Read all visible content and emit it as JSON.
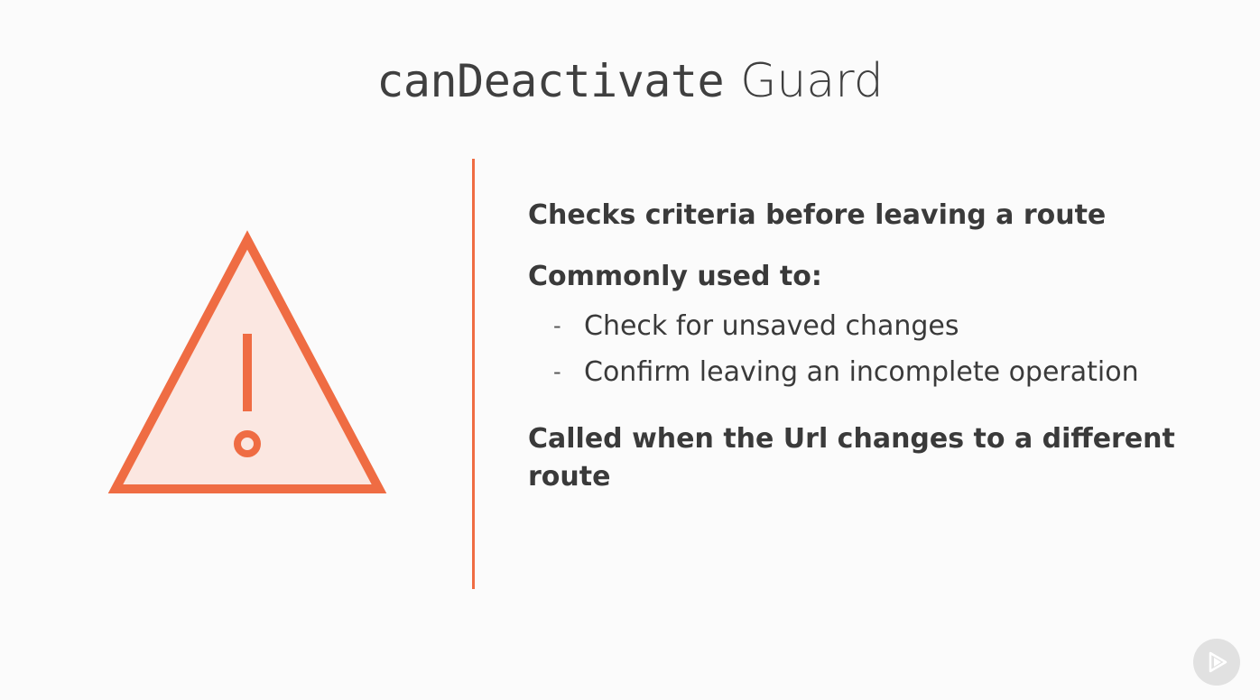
{
  "slide": {
    "title_code": "canDeactivate",
    "title_plain": "Guard",
    "point_1_text": "Checks criteria ",
    "point_1_strong": "before",
    "point_1_tail": " leaving a route",
    "point_2": "Commonly used to:",
    "sub_dash": "-",
    "sub_items": [
      "Check for unsaved changes",
      "Confirm leaving an incomplete operation"
    ],
    "point_3": "Called when the Url changes to a different route"
  },
  "icons": {
    "warning": "warning-triangle-icon",
    "play": "play-logo-icon"
  },
  "colors": {
    "accent": "#ef6c43",
    "icon_fill": "#fbe7e1",
    "text": "#3a3a3a",
    "background": "#fbfbfb"
  }
}
